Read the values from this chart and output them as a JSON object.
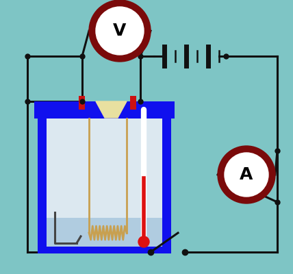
{
  "bg_color": "#7ec5c5",
  "wire_color": "#111111",
  "meter_ring": "#7a0a0a",
  "container_blue": "#1010ee",
  "inner_top_color": "#dce8f0",
  "inner_bottom_color": "#b0cce0",
  "funnel_color": "#e8e0a0",
  "heater_color": "#c8a050",
  "therm_white": "#ffffff",
  "therm_red": "#dd1111",
  "pin_red": "#cc1111",
  "stirrer_color": "#444444"
}
